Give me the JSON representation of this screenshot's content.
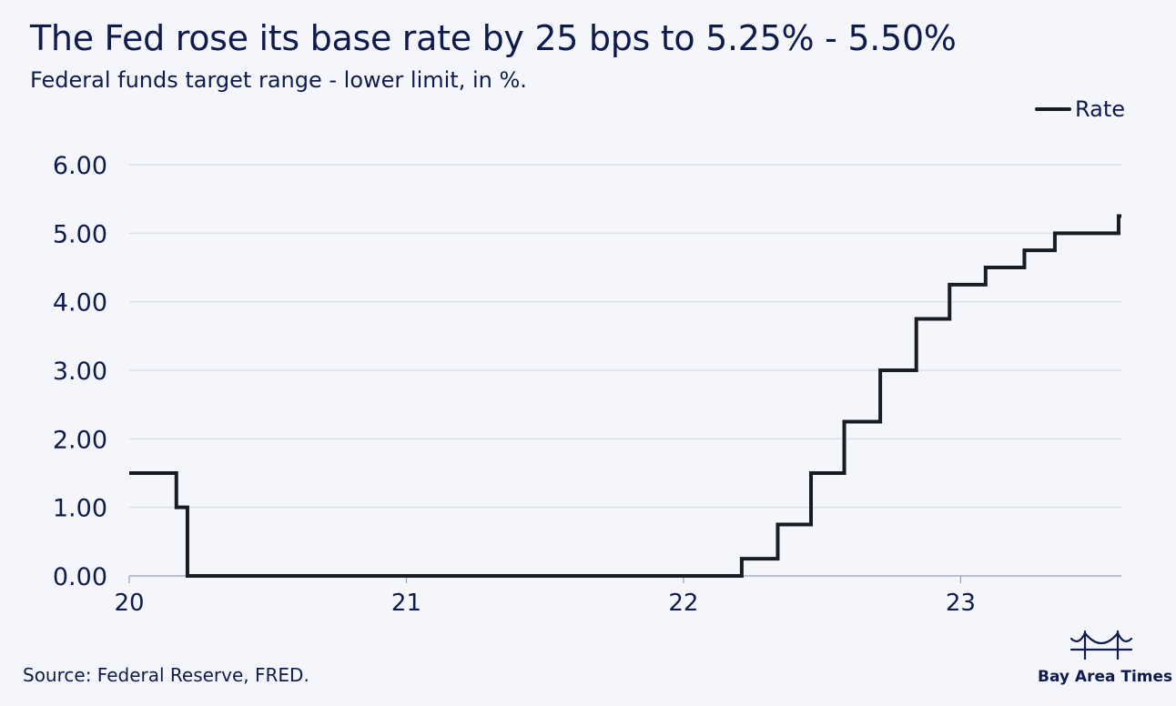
{
  "header": {
    "title": "The Fed rose its base rate by 25 bps to 5.25% - 5.50%",
    "subtitle": "Federal funds target range - lower limit, in %."
  },
  "legend": {
    "label": "Rate"
  },
  "footer": {
    "source": "Source: Federal Reserve, FRED.",
    "brand": "Bay Area Times",
    "brand_icon": "bridge-icon"
  },
  "colors": {
    "background": "#f5f6fb",
    "text": "#0f1a4d",
    "line": "#1a1c24",
    "grid": "#d8dae3"
  },
  "chart_data": {
    "type": "line",
    "step": true,
    "title": "The Fed rose its base rate by 25 bps to 5.25% - 5.50%",
    "subtitle": "Federal funds target range - lower limit, in %.",
    "xlabel": "",
    "ylabel": "",
    "xlim": [
      2020.0,
      2023.58
    ],
    "ylim": [
      0,
      6
    ],
    "x_ticks": [
      2020,
      2021,
      2022,
      2023
    ],
    "x_tick_labels": [
      "20",
      "21",
      "22",
      "23"
    ],
    "y_ticks": [
      0,
      1,
      2,
      3,
      4,
      5,
      6
    ],
    "y_tick_labels": [
      "0.00",
      "1.00",
      "2.00",
      "3.00",
      "4.00",
      "5.00",
      "6.00"
    ],
    "grid": true,
    "legend_position": "top-right",
    "series": [
      {
        "name": "Rate",
        "x": [
          2020.0,
          2020.17,
          2020.21,
          2022.21,
          2022.34,
          2022.46,
          2022.58,
          2022.71,
          2022.84,
          2022.96,
          2023.09,
          2023.23,
          2023.34,
          2023.57
        ],
        "values": [
          1.5,
          1.0,
          0.0,
          0.25,
          0.75,
          1.5,
          2.25,
          3.0,
          3.75,
          4.25,
          4.5,
          4.75,
          5.0,
          5.25
        ],
        "end_x": 2023.58
      }
    ]
  }
}
